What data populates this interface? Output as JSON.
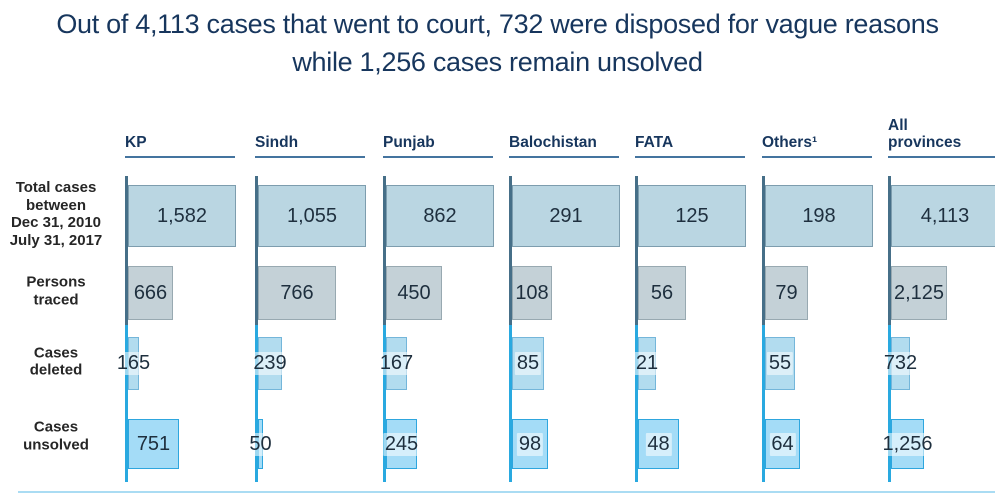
{
  "title": "Out of 4,113 cases that went to court, 732 were disposed for vague reasons while 1,256 cases remain unsolved",
  "chart_data": {
    "type": "bar",
    "orientation": "horizontal",
    "layout": "small-multiples: one mini bar chart per province column, one bar per metric row",
    "scaling_note": "bar width is proportional to value divided by that column's total cases; total-cases bar is full width",
    "categories": [
      "KP",
      "Sindh",
      "Punjab",
      "Balochistan",
      "FATA",
      "Others¹",
      "All provinces"
    ],
    "rows": [
      {
        "label": "Total cases between Dec 31, 2010 July 31, 2017",
        "label_lines": [
          "Total cases",
          "between",
          "Dec 31, 2010",
          "July 31, 2017"
        ],
        "values": [
          1582,
          1055,
          862,
          291,
          125,
          198,
          4113
        ]
      },
      {
        "label": "Persons traced",
        "label_lines": [
          "Persons",
          "traced"
        ],
        "values": [
          666,
          766,
          450,
          108,
          56,
          79,
          2125
        ]
      },
      {
        "label": "Cases deleted",
        "label_lines": [
          "Cases",
          "deleted"
        ],
        "values": [
          165,
          239,
          167,
          85,
          21,
          55,
          732
        ]
      },
      {
        "label": "Cases unsolved",
        "label_lines": [
          "Cases",
          "unsolved"
        ],
        "values": [
          751,
          50,
          245,
          98,
          48,
          64,
          1256
        ]
      }
    ],
    "legend": "none",
    "grid": "off",
    "colors": {
      "title_text": "#17365d",
      "header_text": "#17365d",
      "header_underline": "#44749f",
      "axis_upper": "#466f88",
      "axis_lower": "#29a9e0",
      "baseline": "#aadcf3",
      "value_text": "#1e2f3e",
      "row_label_text": "#262626",
      "row_styles": [
        {
          "fill": "#bad6e2",
          "border": "#7d9dae"
        },
        {
          "fill": "#c4d1d7",
          "border": "#98a9b1"
        },
        {
          "fill": "#b2dcef",
          "border": "#74b6da"
        },
        {
          "fill": "#a4dcf7",
          "border": "#2ea6de"
        }
      ]
    }
  }
}
